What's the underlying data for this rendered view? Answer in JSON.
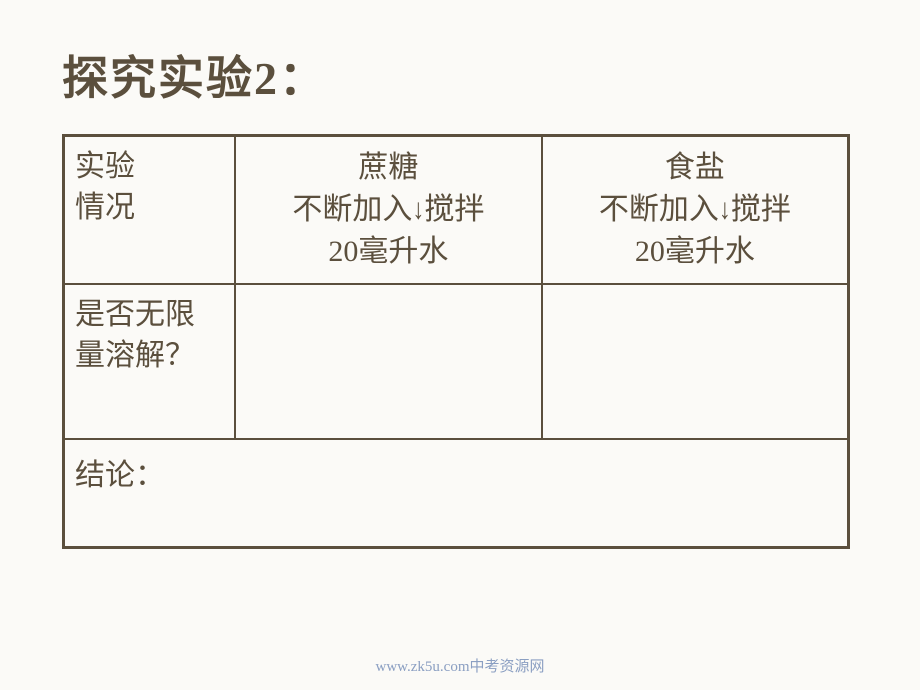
{
  "title": "探究实验2：",
  "table": {
    "row1": {
      "label_line1": "实验",
      "label_line2": "情况",
      "col1": {
        "substance": "蔗糖",
        "action_left": "不断加入",
        "action_right": "搅拌",
        "water": "20毫升水"
      },
      "col2": {
        "substance": "食盐",
        "action_left": "不断加入",
        "action_right": "搅拌",
        "water": "20毫升水"
      }
    },
    "row2": {
      "label_line1": "是否无限",
      "label_line2": "量溶解？",
      "col1": "",
      "col2": ""
    },
    "row3": {
      "label": "结论：",
      "content": ""
    }
  },
  "footer": "www.zk5u.com中考资源网",
  "colors": {
    "background": "#fbfaf7",
    "text": "#5b4f3d",
    "border": "#5b4f3d",
    "footer": "#8b9fc2"
  }
}
